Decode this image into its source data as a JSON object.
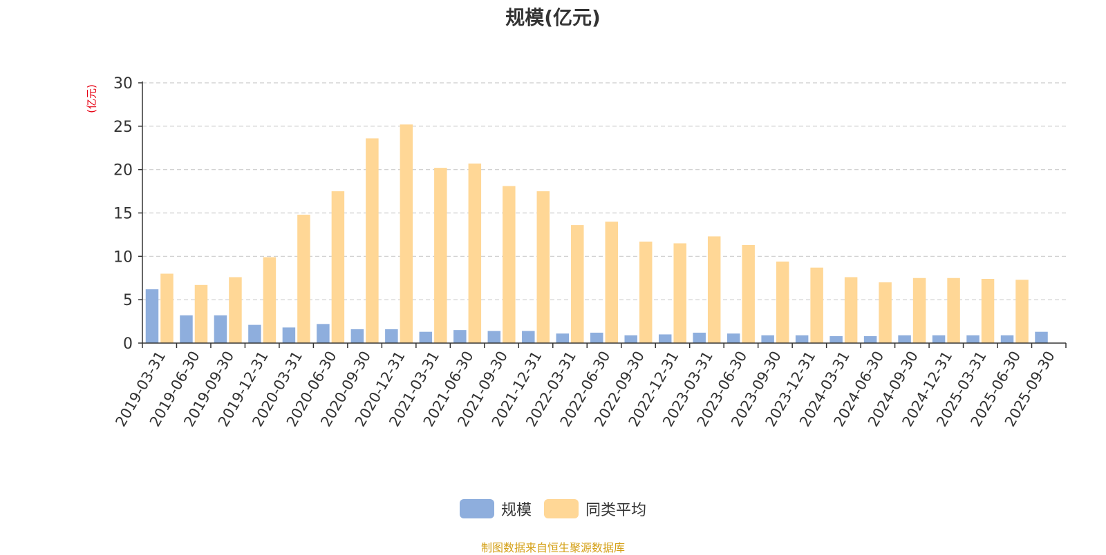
{
  "chart_data": {
    "type": "bar",
    "title": "规模(亿元)",
    "ylabel": "(亿元)",
    "ylim": [
      0,
      30
    ],
    "yticks": [
      0,
      5,
      10,
      15,
      20,
      25,
      30
    ],
    "grid": true,
    "legend_position": "bottom",
    "categories": [
      "2019-03-31",
      "2019-06-30",
      "2019-09-30",
      "2019-12-31",
      "2020-03-31",
      "2020-06-30",
      "2020-09-30",
      "2020-12-31",
      "2021-03-31",
      "2021-06-30",
      "2021-09-30",
      "2021-12-31",
      "2022-03-31",
      "2022-06-30",
      "2022-09-30",
      "2022-12-31",
      "2023-03-31",
      "2023-06-30",
      "2023-09-30",
      "2023-12-31",
      "2024-03-31",
      "2024-06-30",
      "2024-09-30",
      "2024-12-31",
      "2025-03-31",
      "2025-06-30",
      "2025-09-30"
    ],
    "series": [
      {
        "name": "规模",
        "color": "#8eaedd",
        "values": [
          6.2,
          3.2,
          3.2,
          2.1,
          1.8,
          2.2,
          1.6,
          1.6,
          1.3,
          1.5,
          1.4,
          1.4,
          1.1,
          1.2,
          0.9,
          1.0,
          1.2,
          1.1,
          0.9,
          0.9,
          0.8,
          0.8,
          0.9,
          0.9,
          0.9,
          0.9,
          1.3
        ]
      },
      {
        "name": "同类平均",
        "color": "#ffd796",
        "values": [
          8.0,
          6.7,
          7.6,
          9.9,
          14.8,
          17.5,
          23.6,
          25.2,
          20.2,
          20.7,
          18.1,
          17.5,
          13.6,
          14.0,
          11.7,
          11.5,
          12.3,
          11.3,
          9.4,
          8.7,
          7.6,
          7.0,
          7.5,
          7.5,
          7.4,
          7.3,
          null
        ]
      }
    ]
  },
  "source_text": "制图数据来自恒生聚源数据库"
}
